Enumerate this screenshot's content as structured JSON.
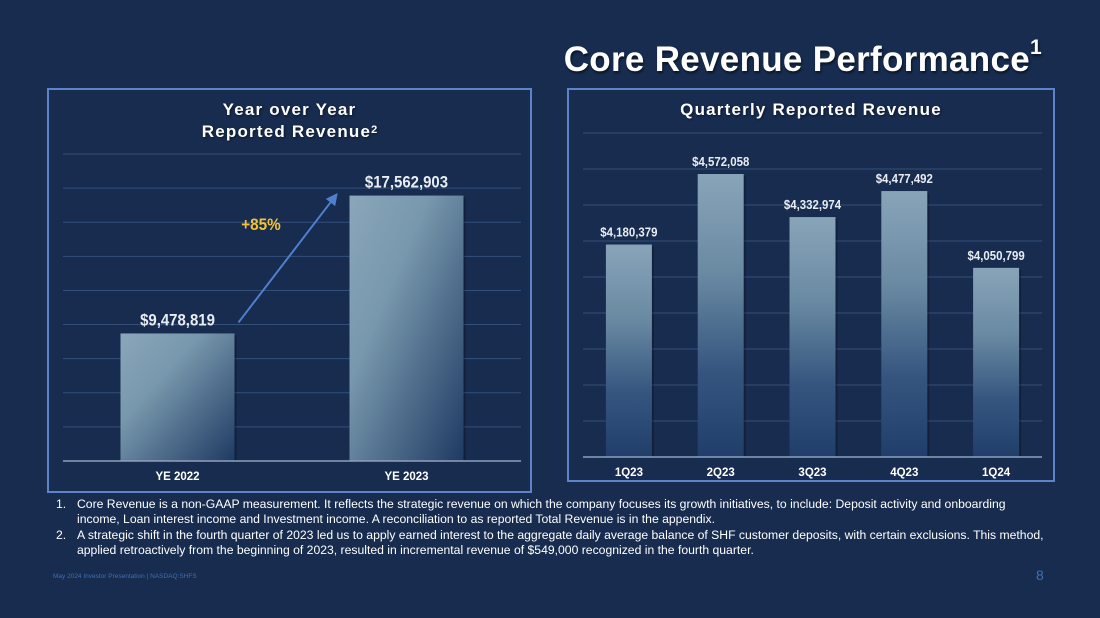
{
  "slide": {
    "title": "Core Revenue Performance",
    "title_sup": "1",
    "footer": "May 2024 Investor Presentation  |  NASDAQ:SHFS",
    "page_number": "8"
  },
  "footnotes": [
    {
      "num": "1.",
      "text": "Core Revenue is a non-GAAP measurement. It reflects the strategic revenue on which the company focuses its growth initiatives, to include: Deposit activity and onboarding income, Loan interest income and Investment income. A reconciliation to as reported Total Revenue is in the appendix."
    },
    {
      "num": "2.",
      "text": "A strategic shift in the fourth quarter of 2023 led us to apply earned interest to the aggregate daily average balance of SHF customer deposits, with certain exclusions. This method, applied retroactively from the beginning of 2023, resulted in incremental revenue of $549,000 recognized in the fourth quarter."
    }
  ],
  "colors": {
    "background": "#172c4f",
    "panel_border": "#5d84c9",
    "gridline": "#34507a",
    "bar_light": "#86a3b8",
    "bar_dark": "#213e6b",
    "growth_label": "#f2c230",
    "arrow": "#4f7fce",
    "footer_text": "#3f6fb5"
  },
  "chart_data": [
    {
      "type": "bar",
      "title": "Year over Year Reported Revenue",
      "title_line1": "Year over Year",
      "title_line2": "Reported Revenue",
      "title_sup": "2",
      "categories": [
        "YE 2022",
        "YE 2023"
      ],
      "values": [
        9478819,
        17562903
      ],
      "data_labels": [
        "$9,478,819",
        "$17,562,903"
      ],
      "annotation": {
        "text": "+85%",
        "type": "growth-arrow",
        "from": "YE 2022",
        "to": "YE 2023"
      },
      "xlabel": "",
      "ylabel": "",
      "ylim": [
        2000000,
        20000000
      ],
      "ytick_step": 2000000,
      "yaxis_labels_visible": false,
      "grid": true,
      "legend": "none"
    },
    {
      "type": "bar",
      "title": "Quarterly Reported Revenue",
      "categories": [
        "1Q23",
        "2Q23",
        "3Q23",
        "4Q23",
        "1Q24"
      ],
      "values": [
        4180379,
        4572058,
        4332974,
        4477492,
        4050799
      ],
      "data_labels": [
        "$4,180,379",
        "$4,572,058",
        "$4,332,974",
        "$4,477,492",
        "$4,050,799"
      ],
      "xlabel": "",
      "ylabel": "",
      "ylim": [
        3000000,
        4800000
      ],
      "ytick_step": 200000,
      "yaxis_labels_visible": false,
      "grid": true,
      "legend": "none"
    }
  ]
}
